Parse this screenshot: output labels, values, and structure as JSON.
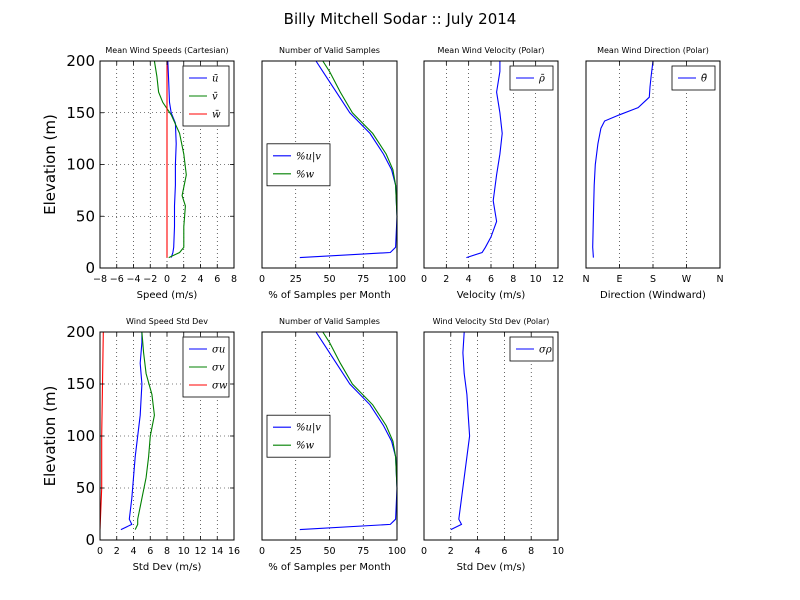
{
  "suptitle": "Billy Mitchell Sodar :: July 2014",
  "colors": {
    "blue": "#0000ff",
    "green": "#008000",
    "red": "#ff0000"
  },
  "chart_data": [
    {
      "type": "line",
      "title": "Mean Wind Speeds (Cartesian)",
      "xlabel": "Speed (m/s)",
      "ylabel": "Elevation (m)",
      "xlim": [
        -8,
        8
      ],
      "ylim": [
        0,
        200
      ],
      "xticks": [
        -8,
        -6,
        -4,
        -2,
        0,
        2,
        4,
        6,
        8
      ],
      "xtick_labels": [
        "−8",
        "−6",
        "−4",
        "−2",
        "0",
        "2",
        "4",
        "6",
        "8"
      ],
      "yticks": [
        0,
        50,
        100,
        150,
        200
      ],
      "ytick_labels": [
        "0",
        "50",
        "100",
        "150",
        "200"
      ],
      "legend": {
        "placement": "top-right"
      },
      "series": [
        {
          "name": "ū",
          "color": "blue",
          "points": [
            [
              0.5,
              10
            ],
            [
              0.7,
              15
            ],
            [
              0.8,
              20
            ],
            [
              0.9,
              40
            ],
            [
              0.9,
              60
            ],
            [
              1.0,
              80
            ],
            [
              1.0,
              100
            ],
            [
              1.1,
              120
            ],
            [
              1.0,
              140
            ],
            [
              0.5,
              150
            ],
            [
              0.3,
              160
            ],
            [
              0.2,
              180
            ],
            [
              0.1,
              200
            ]
          ]
        },
        {
          "name": "v̄",
          "color": "green",
          "points": [
            [
              0.2,
              10
            ],
            [
              1.5,
              15
            ],
            [
              2.0,
              20
            ],
            [
              2.0,
              40
            ],
            [
              2.2,
              60
            ],
            [
              1.8,
              70
            ],
            [
              2.3,
              90
            ],
            [
              2.0,
              110
            ],
            [
              1.5,
              130
            ],
            [
              0.5,
              148
            ],
            [
              -0.5,
              160
            ],
            [
              -1.0,
              170
            ],
            [
              -1.2,
              185
            ],
            [
              -1.5,
              200
            ]
          ]
        },
        {
          "name": "w̄",
          "color": "red",
          "points": [
            [
              0.0,
              10
            ],
            [
              0.0,
              200
            ]
          ]
        }
      ]
    },
    {
      "type": "line",
      "title": "Number of Valid Samples",
      "xlabel": "% of Samples per Month",
      "ylabel": "",
      "xlim": [
        0,
        100
      ],
      "ylim": [
        0,
        200
      ],
      "xticks": [
        0,
        25,
        50,
        75,
        100
      ],
      "xtick_labels": [
        "0",
        "25",
        "50",
        "75",
        "100"
      ],
      "yticks": [],
      "legend": {
        "placement": "center-left"
      },
      "series": [
        {
          "name": "%u|v",
          "color": "blue",
          "points": [
            [
              28,
              10
            ],
            [
              95,
              15
            ],
            [
              99,
              20
            ],
            [
              100,
              50
            ],
            [
              99,
              80
            ],
            [
              96,
              95
            ],
            [
              90,
              110
            ],
            [
              80,
              130
            ],
            [
              65,
              150
            ],
            [
              55,
              170
            ],
            [
              45,
              190
            ],
            [
              40,
              200
            ]
          ]
        },
        {
          "name": "%w",
          "color": "green",
          "points": [
            [
              100,
              15
            ],
            [
              100,
              50
            ],
            [
              99,
              80
            ],
            [
              97,
              95
            ],
            [
              92,
              110
            ],
            [
              82,
              130
            ],
            [
              67,
              150
            ],
            [
              58,
              170
            ],
            [
              50,
              190
            ],
            [
              45,
              200
            ]
          ]
        }
      ]
    },
    {
      "type": "line",
      "title": "Mean Wind Velocity (Polar)",
      "xlabel": "Velocity (m/s)",
      "ylabel": "",
      "xlim": [
        0,
        12
      ],
      "ylim": [
        0,
        200
      ],
      "xticks": [
        0,
        2,
        4,
        6,
        8,
        10,
        12
      ],
      "xtick_labels": [
        "0",
        "2",
        "4",
        "6",
        "8",
        "10",
        "12"
      ],
      "yticks": [],
      "legend": {
        "placement": "top-right"
      },
      "series": [
        {
          "name": "ρ̄",
          "color": "blue",
          "points": [
            [
              3.8,
              10
            ],
            [
              5.2,
              15
            ],
            [
              5.5,
              20
            ],
            [
              6.0,
              30
            ],
            [
              6.5,
              45
            ],
            [
              6.2,
              65
            ],
            [
              6.5,
              90
            ],
            [
              6.8,
              110
            ],
            [
              7.0,
              130
            ],
            [
              6.8,
              150
            ],
            [
              6.5,
              170
            ],
            [
              6.8,
              190
            ],
            [
              6.8,
              200
            ]
          ]
        }
      ]
    },
    {
      "type": "line",
      "title": "Mean Wind Direction (Polar)",
      "xlabel": "Direction (Windward)",
      "ylabel": "",
      "xlim": [
        0,
        360
      ],
      "ylim": [
        0,
        200
      ],
      "xticks": [
        0,
        90,
        180,
        270,
        360
      ],
      "xtick_labels": [
        "N",
        "E",
        "S",
        "W",
        "N"
      ],
      "yticks": [],
      "legend": {
        "placement": "top-right"
      },
      "series": [
        {
          "name": "θ̄",
          "color": "blue",
          "points": [
            [
              20,
              10
            ],
            [
              18,
              20
            ],
            [
              20,
              50
            ],
            [
              22,
              80
            ],
            [
              25,
              100
            ],
            [
              32,
              120
            ],
            [
              40,
              135
            ],
            [
              50,
              142
            ],
            [
              90,
              148
            ],
            [
              140,
              155
            ],
            [
              170,
              165
            ],
            [
              172,
              175
            ],
            [
              175,
              185
            ],
            [
              180,
              200
            ]
          ]
        }
      ]
    },
    {
      "type": "line",
      "title": "Wind Speed Std Dev",
      "xlabel": "Std Dev (m/s)",
      "ylabel": "Elevation (m)",
      "xlim": [
        0,
        16
      ],
      "ylim": [
        0,
        200
      ],
      "xticks": [
        0,
        2,
        4,
        6,
        8,
        10,
        12,
        14,
        16
      ],
      "xtick_labels": [
        "0",
        "2",
        "4",
        "6",
        "8",
        "10",
        "12",
        "14",
        "16"
      ],
      "yticks": [
        0,
        50,
        100,
        150,
        200
      ],
      "ytick_labels": [
        "0",
        "50",
        "100",
        "150",
        "200"
      ],
      "legend": {
        "placement": "top-right"
      },
      "series": [
        {
          "name": "σu",
          "color": "blue",
          "points": [
            [
              2.5,
              10
            ],
            [
              3.8,
              15
            ],
            [
              3.5,
              20
            ],
            [
              3.8,
              40
            ],
            [
              4.0,
              60
            ],
            [
              4.2,
              80
            ],
            [
              4.5,
              100
            ],
            [
              4.8,
              120
            ],
            [
              5.0,
              150
            ],
            [
              4.8,
              170
            ],
            [
              5.0,
              190
            ],
            [
              5.0,
              200
            ]
          ]
        },
        {
          "name": "σv",
          "color": "green",
          "points": [
            [
              4.2,
              10
            ],
            [
              4.5,
              15
            ],
            [
              4.5,
              20
            ],
            [
              5.0,
              40
            ],
            [
              5.5,
              60
            ],
            [
              5.8,
              80
            ],
            [
              6.0,
              100
            ],
            [
              6.5,
              120
            ],
            [
              6.2,
              140
            ],
            [
              5.5,
              160
            ],
            [
              5.2,
              180
            ],
            [
              5.0,
              200
            ]
          ]
        },
        {
          "name": "σw",
          "color": "red",
          "points": [
            [
              0.0,
              10
            ],
            [
              0.2,
              50
            ],
            [
              0.2,
              100
            ],
            [
              0.3,
              150
            ],
            [
              0.4,
              200
            ]
          ]
        }
      ]
    },
    {
      "type": "line",
      "title": "Number of Valid Samples",
      "xlabel": "% of Samples per Month",
      "ylabel": "",
      "xlim": [
        0,
        100
      ],
      "ylim": [
        0,
        200
      ],
      "xticks": [
        0,
        25,
        50,
        75,
        100
      ],
      "xtick_labels": [
        "0",
        "25",
        "50",
        "75",
        "100"
      ],
      "yticks": [],
      "legend": {
        "placement": "center-left"
      },
      "series": [
        {
          "name": "%u|v",
          "color": "blue",
          "points": [
            [
              28,
              10
            ],
            [
              95,
              15
            ],
            [
              99,
              20
            ],
            [
              100,
              50
            ],
            [
              99,
              80
            ],
            [
              96,
              95
            ],
            [
              90,
              110
            ],
            [
              80,
              130
            ],
            [
              65,
              150
            ],
            [
              55,
              170
            ],
            [
              45,
              190
            ],
            [
              40,
              200
            ]
          ]
        },
        {
          "name": "%w",
          "color": "green",
          "points": [
            [
              100,
              15
            ],
            [
              100,
              50
            ],
            [
              99,
              80
            ],
            [
              97,
              95
            ],
            [
              92,
              110
            ],
            [
              82,
              130
            ],
            [
              67,
              150
            ],
            [
              58,
              170
            ],
            [
              50,
              190
            ],
            [
              45,
              200
            ]
          ]
        }
      ]
    },
    {
      "type": "line",
      "title": "Wind Velocity Std Dev (Polar)",
      "xlabel": "Std Dev (m/s)",
      "ylabel": "",
      "xlim": [
        0,
        10
      ],
      "ylim": [
        0,
        200
      ],
      "xticks": [
        0,
        2,
        4,
        6,
        8,
        10
      ],
      "xtick_labels": [
        "0",
        "2",
        "4",
        "6",
        "8",
        "10"
      ],
      "yticks": [],
      "legend": {
        "placement": "top-right"
      },
      "series": [
        {
          "name": "σρ",
          "color": "blue",
          "points": [
            [
              2.0,
              10
            ],
            [
              2.8,
              15
            ],
            [
              2.6,
              20
            ],
            [
              2.8,
              40
            ],
            [
              3.0,
              60
            ],
            [
              3.2,
              80
            ],
            [
              3.4,
              100
            ],
            [
              3.3,
              120
            ],
            [
              3.2,
              140
            ],
            [
              3.0,
              160
            ],
            [
              2.9,
              180
            ],
            [
              3.0,
              200
            ]
          ]
        }
      ]
    }
  ]
}
